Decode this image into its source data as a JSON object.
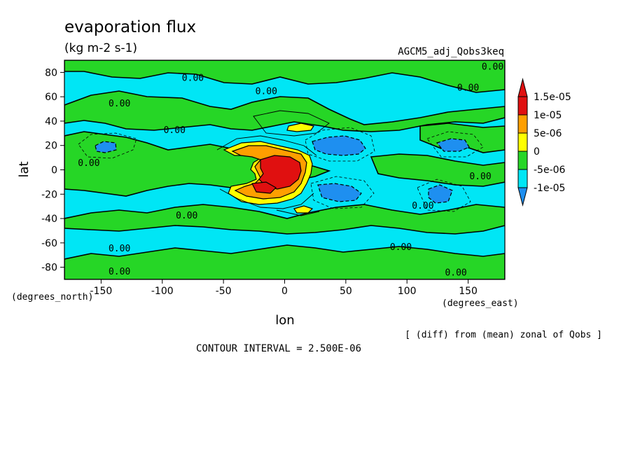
{
  "colors": {
    "lev_neg10": "#1e8ff0",
    "lev_neg5": "#00e6f5",
    "lev_0": "#26d626",
    "lev_5": "#ffff00",
    "lev_10": "#ff9f00",
    "lev_15": "#e01010",
    "contour": "#000000"
  },
  "chart_data": {
    "type": "heatmap",
    "title": "evaporation flux",
    "subtitle": "(kg m-2 s-1)",
    "run_label": "AGCM5_adj_Qobs3keq",
    "xlabel": "lon",
    "ylabel": "lat",
    "x_unit_label": "(degrees_east)",
    "y_unit_label": "(degrees_north)",
    "xlim": [
      -180,
      180
    ],
    "ylim": [
      -90,
      90
    ],
    "x_ticks": [
      -150,
      -100,
      -50,
      0,
      50,
      100,
      150
    ],
    "y_ticks": [
      80,
      60,
      40,
      20,
      0,
      -20,
      -40,
      -60,
      -80
    ],
    "x_tick_labels": [
      "-150",
      "-100",
      "-50",
      "0",
      "50",
      "100",
      "150"
    ],
    "y_tick_labels": [
      "80",
      "60",
      "40",
      "20",
      "0",
      "-20",
      "-40",
      "-60",
      "-80"
    ],
    "colorbar": {
      "levels": [
        -1e-05,
        -5e-06,
        0,
        5e-06,
        1e-05,
        1.5e-05
      ],
      "labels": [
        "1.5e-05",
        "1e-05",
        "5e-06",
        "0",
        "-5e-06",
        "-1e-05"
      ]
    },
    "contour_interval_text": "CONTOUR INTERVAL = 2.500E-06",
    "footnote": "[ (diff) from (mean) zonal of Qobs ]",
    "contour_label": "0.00",
    "zero_contour_labels": [
      {
        "lon": 170,
        "lat": 85
      },
      {
        "lon": -75,
        "lat": 76
      },
      {
        "lon": -15,
        "lat": 65
      },
      {
        "lon": 150,
        "lat": 68
      },
      {
        "lon": -135,
        "lat": 55
      },
      {
        "lon": -90,
        "lat": 33
      },
      {
        "lon": -160,
        "lat": 6
      },
      {
        "lon": 160,
        "lat": -5
      },
      {
        "lon": 113,
        "lat": -29
      },
      {
        "lon": -80,
        "lat": -37
      },
      {
        "lon": 95,
        "lat": -63
      },
      {
        "lon": -135,
        "lat": -64
      },
      {
        "lon": -135,
        "lat": -83
      },
      {
        "lon": 140,
        "lat": -84
      }
    ]
  }
}
